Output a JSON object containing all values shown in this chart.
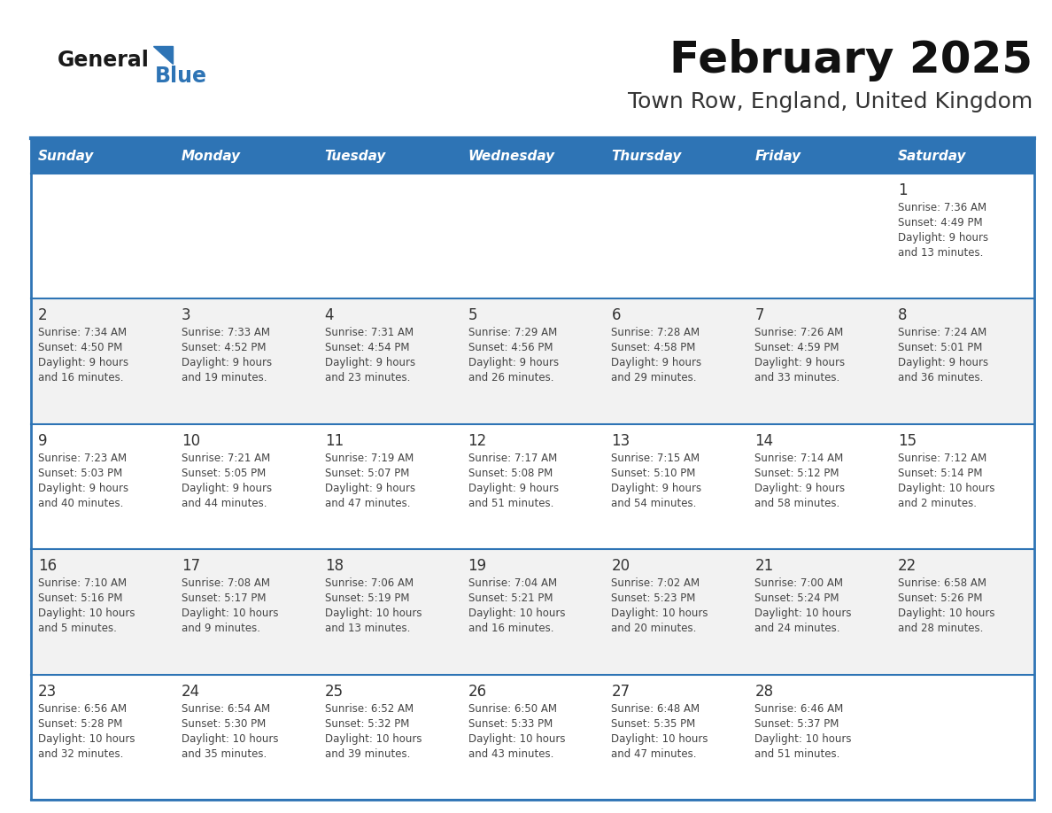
{
  "title": "February 2025",
  "subtitle": "Town Row, England, United Kingdom",
  "days_of_week": [
    "Sunday",
    "Monday",
    "Tuesday",
    "Wednesday",
    "Thursday",
    "Friday",
    "Saturday"
  ],
  "header_bg": "#2E74B5",
  "header_text": "#FFFFFF",
  "cell_bg_even": "#FFFFFF",
  "cell_bg_odd": "#F2F2F2",
  "divider_color": "#2E74B5",
  "text_color": "#444444",
  "day_number_color": "#333333",
  "logo_general_color": "#1a1a1a",
  "logo_blue_color": "#2E74B5",
  "calendar_data": [
    [
      null,
      null,
      null,
      null,
      null,
      null,
      {
        "day": 1,
        "sunrise": "7:36 AM",
        "sunset": "4:49 PM",
        "daylight": "9 hours and 13 minutes."
      }
    ],
    [
      {
        "day": 2,
        "sunrise": "7:34 AM",
        "sunset": "4:50 PM",
        "daylight": "9 hours and 16 minutes."
      },
      {
        "day": 3,
        "sunrise": "7:33 AM",
        "sunset": "4:52 PM",
        "daylight": "9 hours and 19 minutes."
      },
      {
        "day": 4,
        "sunrise": "7:31 AM",
        "sunset": "4:54 PM",
        "daylight": "9 hours and 23 minutes."
      },
      {
        "day": 5,
        "sunrise": "7:29 AM",
        "sunset": "4:56 PM",
        "daylight": "9 hours and 26 minutes."
      },
      {
        "day": 6,
        "sunrise": "7:28 AM",
        "sunset": "4:58 PM",
        "daylight": "9 hours and 29 minutes."
      },
      {
        "day": 7,
        "sunrise": "7:26 AM",
        "sunset": "4:59 PM",
        "daylight": "9 hours and 33 minutes."
      },
      {
        "day": 8,
        "sunrise": "7:24 AM",
        "sunset": "5:01 PM",
        "daylight": "9 hours and 36 minutes."
      }
    ],
    [
      {
        "day": 9,
        "sunrise": "7:23 AM",
        "sunset": "5:03 PM",
        "daylight": "9 hours and 40 minutes."
      },
      {
        "day": 10,
        "sunrise": "7:21 AM",
        "sunset": "5:05 PM",
        "daylight": "9 hours and 44 minutes."
      },
      {
        "day": 11,
        "sunrise": "7:19 AM",
        "sunset": "5:07 PM",
        "daylight": "9 hours and 47 minutes."
      },
      {
        "day": 12,
        "sunrise": "7:17 AM",
        "sunset": "5:08 PM",
        "daylight": "9 hours and 51 minutes."
      },
      {
        "day": 13,
        "sunrise": "7:15 AM",
        "sunset": "5:10 PM",
        "daylight": "9 hours and 54 minutes."
      },
      {
        "day": 14,
        "sunrise": "7:14 AM",
        "sunset": "5:12 PM",
        "daylight": "9 hours and 58 minutes."
      },
      {
        "day": 15,
        "sunrise": "7:12 AM",
        "sunset": "5:14 PM",
        "daylight": "10 hours and 2 minutes."
      }
    ],
    [
      {
        "day": 16,
        "sunrise": "7:10 AM",
        "sunset": "5:16 PM",
        "daylight": "10 hours and 5 minutes."
      },
      {
        "day": 17,
        "sunrise": "7:08 AM",
        "sunset": "5:17 PM",
        "daylight": "10 hours and 9 minutes."
      },
      {
        "day": 18,
        "sunrise": "7:06 AM",
        "sunset": "5:19 PM",
        "daylight": "10 hours and 13 minutes."
      },
      {
        "day": 19,
        "sunrise": "7:04 AM",
        "sunset": "5:21 PM",
        "daylight": "10 hours and 16 minutes."
      },
      {
        "day": 20,
        "sunrise": "7:02 AM",
        "sunset": "5:23 PM",
        "daylight": "10 hours and 20 minutes."
      },
      {
        "day": 21,
        "sunrise": "7:00 AM",
        "sunset": "5:24 PM",
        "daylight": "10 hours and 24 minutes."
      },
      {
        "day": 22,
        "sunrise": "6:58 AM",
        "sunset": "5:26 PM",
        "daylight": "10 hours and 28 minutes."
      }
    ],
    [
      {
        "day": 23,
        "sunrise": "6:56 AM",
        "sunset": "5:28 PM",
        "daylight": "10 hours and 32 minutes."
      },
      {
        "day": 24,
        "sunrise": "6:54 AM",
        "sunset": "5:30 PM",
        "daylight": "10 hours and 35 minutes."
      },
      {
        "day": 25,
        "sunrise": "6:52 AM",
        "sunset": "5:32 PM",
        "daylight": "10 hours and 39 minutes."
      },
      {
        "day": 26,
        "sunrise": "6:50 AM",
        "sunset": "5:33 PM",
        "daylight": "10 hours and 43 minutes."
      },
      {
        "day": 27,
        "sunrise": "6:48 AM",
        "sunset": "5:35 PM",
        "daylight": "10 hours and 47 minutes."
      },
      {
        "day": 28,
        "sunrise": "6:46 AM",
        "sunset": "5:37 PM",
        "daylight": "10 hours and 51 minutes."
      },
      null
    ]
  ]
}
